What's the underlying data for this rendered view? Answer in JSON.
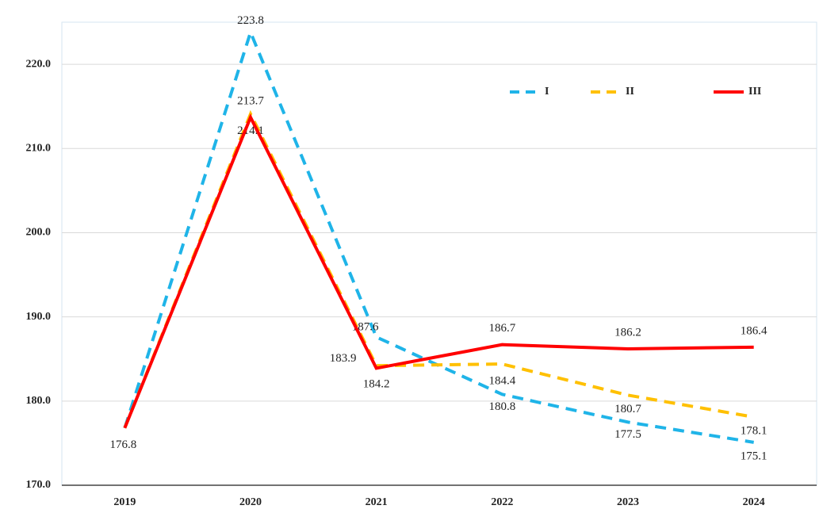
{
  "chart_data": {
    "type": "line",
    "categories": [
      "2019",
      "2020",
      "2021",
      "2022",
      "2023",
      "2024"
    ],
    "series": [
      {
        "name": "I",
        "color": "#1fb4e8",
        "dash": true,
        "values": [
          176.8,
          223.8,
          187.6,
          180.8,
          177.5,
          175.1
        ],
        "value_labels": [
          null,
          "223.8",
          "187.6",
          "180.8",
          "177.5",
          "175.1"
        ]
      },
      {
        "name": "II",
        "color": "#ffc000",
        "dash": true,
        "values": [
          176.8,
          214.1,
          184.2,
          184.4,
          180.7,
          178.1
        ],
        "value_labels": [
          null,
          "214.1",
          "184.2",
          "184.4",
          "180.7",
          "178.1"
        ]
      },
      {
        "name": "III",
        "color": "#ff0000",
        "dash": false,
        "values": [
          176.8,
          213.7,
          183.9,
          186.7,
          186.2,
          186.4
        ],
        "value_labels": [
          "176.8",
          "213.7",
          "183.9",
          "186.7",
          "186.2",
          "186.4"
        ]
      }
    ],
    "ylim": [
      170,
      225
    ],
    "yticks": [
      {
        "value": 170,
        "label": "170.0"
      },
      {
        "value": 180,
        "label": "180.0"
      },
      {
        "value": 190,
        "label": "190.0"
      },
      {
        "value": 200,
        "label": "200.0"
      },
      {
        "value": 210,
        "label": "210.0"
      },
      {
        "value": 220,
        "label": "220.0"
      }
    ],
    "grid": true,
    "legend": "top-right"
  }
}
